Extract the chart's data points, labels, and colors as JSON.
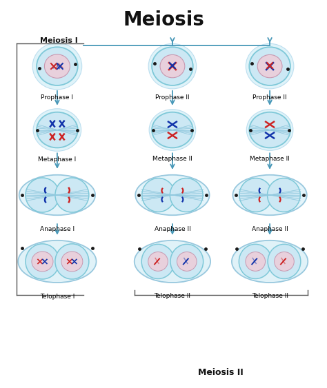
{
  "title": "Meiosis",
  "title_fontsize": 20,
  "title_fontweight": "bold",
  "bg_color": "#ffffff",
  "cell_outer_color": "#7ec8d8",
  "cell_inner_color": "#cce8f4",
  "cell_outer_color2": "#a0d4e8",
  "nucleus_color": "#e8d0dc",
  "spindle_color": "#a8d8ec",
  "arrow_color": "#4898b8",
  "bracket_color": "#444444",
  "label_fontsize": 6.5,
  "label_fontsize2": 8.5,
  "meiosis1_label": "Meiosis I",
  "meiosis2_label": "Meiosis II",
  "phases_col1": [
    "Prophase I",
    "Metaphase I",
    "Anaphase I",
    "Telophase I"
  ],
  "phases_col2": [
    "Prophase II",
    "Metaphase II",
    "Anaphase II",
    "Telophase II"
  ],
  "chr_red": "#cc2222",
  "chr_blue": "#1133aa",
  "cell_glow": "#d8f0f8",
  "cell_glow_edge": "#b0d8ec"
}
